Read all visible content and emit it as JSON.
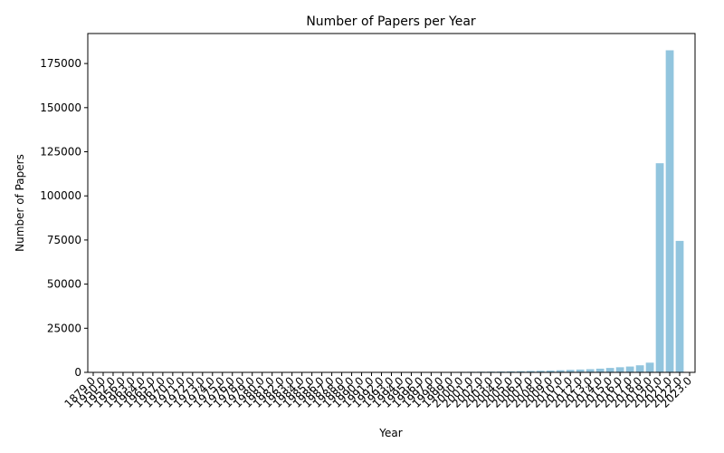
{
  "chart_data": {
    "type": "bar",
    "title": "Number of Papers per Year",
    "xlabel": "Year",
    "ylabel": "Number of Papers",
    "ylim": [
      0,
      192000
    ],
    "yticks": [
      0,
      25000,
      50000,
      75000,
      100000,
      125000,
      150000,
      175000
    ],
    "ytick_labels": [
      "0",
      "25000",
      "50000",
      "75000",
      "100000",
      "125000",
      "150000",
      "175000"
    ],
    "grid": false,
    "legend": "none",
    "bar_color": "#92c5de",
    "categories": [
      "1879.0",
      "1950.0",
      "1952.0",
      "1956.0",
      "1963.0",
      "1964.0",
      "1965.0",
      "1967.0",
      "1970.0",
      "1971.0",
      "1972.0",
      "1973.0",
      "1974.0",
      "1975.0",
      "1976.0",
      "1978.0",
      "1979.0",
      "1980.0",
      "1981.0",
      "1982.0",
      "1983.0",
      "1984.0",
      "1985.0",
      "1986.0",
      "1987.0",
      "1988.0",
      "1989.0",
      "1990.0",
      "1991.0",
      "1992.0",
      "1993.0",
      "1994.0",
      "1995.0",
      "1996.0",
      "1997.0",
      "1998.0",
      "1999.0",
      "2000.0",
      "2001.0",
      "2002.0",
      "2003.0",
      "2004.0",
      "2005.0",
      "2006.0",
      "2007.0",
      "2008.0",
      "2009.0",
      "2010.0",
      "2011.0",
      "2012.0",
      "2013.0",
      "2014.0",
      "2015.0",
      "2016.0",
      "2017.0",
      "2018.0",
      "2019.0",
      "2020.0",
      "2021.0",
      "2022.0",
      "2023.0"
    ],
    "values": [
      5,
      5,
      5,
      5,
      5,
      5,
      5,
      5,
      5,
      5,
      10,
      10,
      10,
      10,
      10,
      10,
      15,
      15,
      20,
      20,
      25,
      30,
      30,
      40,
      50,
      60,
      70,
      80,
      90,
      100,
      120,
      140,
      160,
      180,
      200,
      230,
      260,
      300,
      350,
      400,
      450,
      500,
      600,
      700,
      800,
      900,
      1000,
      1200,
      1400,
      1600,
      1800,
      2100,
      2500,
      2900,
      3300,
      4000,
      5500,
      118500,
      182500,
      74500,
      0
    ]
  }
}
